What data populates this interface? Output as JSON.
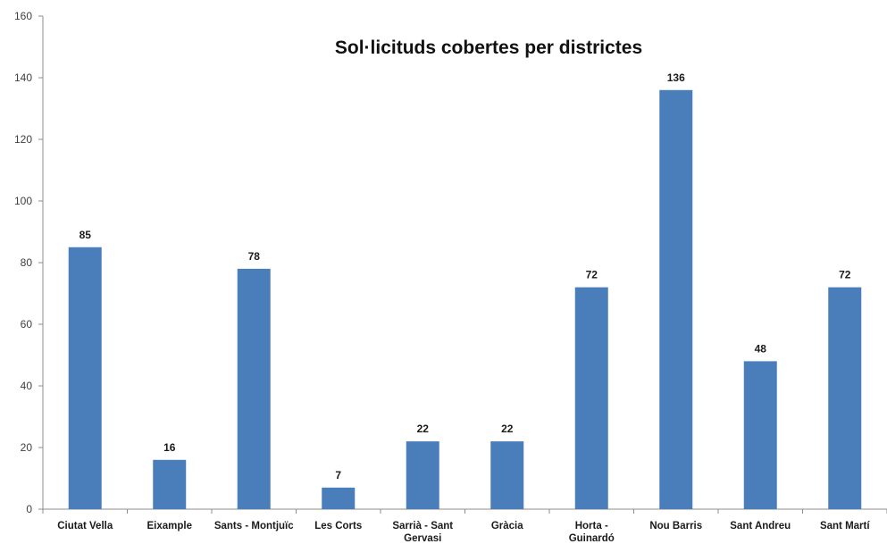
{
  "chart_data": {
    "type": "bar",
    "title": "Sol·licituds cobertes per districtes",
    "xlabel": "",
    "ylabel": "",
    "ylim": [
      0,
      160
    ],
    "yticks": [
      0,
      20,
      40,
      60,
      80,
      100,
      120,
      140,
      160
    ],
    "grid": false,
    "legend": "none",
    "bar_color": "#4a7ebb",
    "categories": [
      [
        "Ciutat Vella"
      ],
      [
        "Eixample"
      ],
      [
        "Sants - Montjuïc"
      ],
      [
        "Les Corts"
      ],
      [
        "Sarrià - Sant",
        "Gervasi"
      ],
      [
        "Gràcia"
      ],
      [
        "Horta -",
        "Guinardó"
      ],
      [
        "Nou Barris"
      ],
      [
        "Sant Andreu"
      ],
      [
        "Sant Martí"
      ]
    ],
    "values": [
      85,
      16,
      78,
      7,
      22,
      22,
      72,
      136,
      48,
      72
    ]
  }
}
